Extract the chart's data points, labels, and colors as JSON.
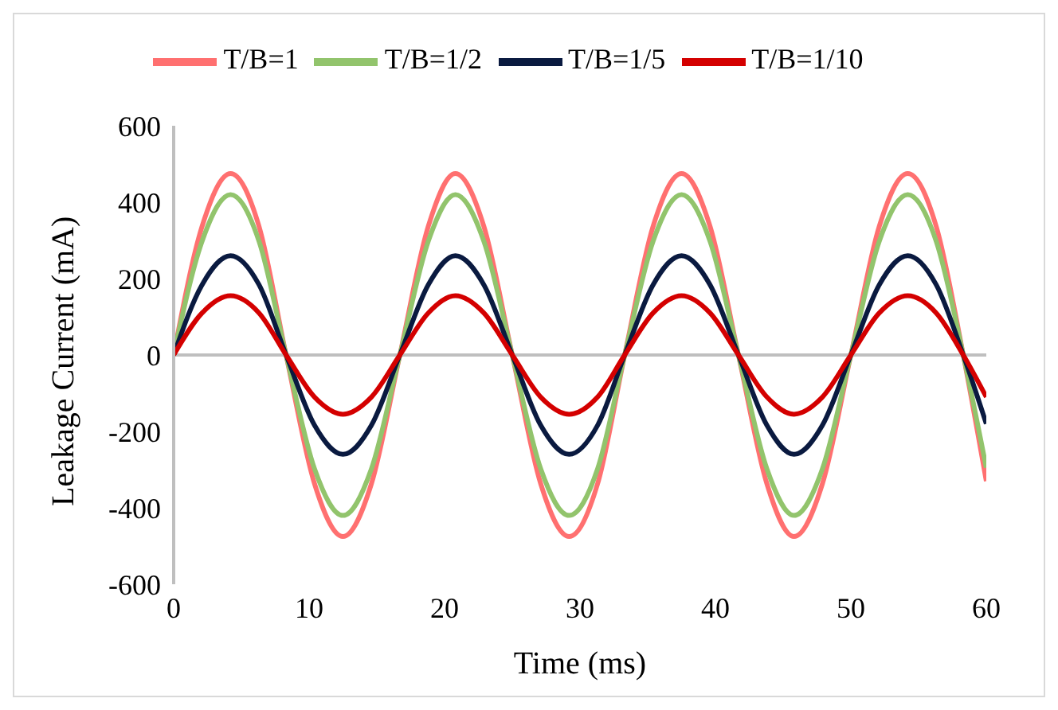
{
  "chart_data": {
    "type": "line",
    "xlabel": "Time (ms)",
    "ylabel": "Leakage Current (mA)",
    "x": [
      0,
      2.1,
      4.2,
      6.3,
      8.3,
      10.4,
      12.5,
      14.6,
      16.7,
      18.8,
      20.8,
      22.9,
      25,
      27.1,
      29.2,
      31.3,
      33.3,
      35.4,
      37.5,
      39.6,
      41.7,
      43.8,
      45.8,
      47.9,
      50,
      52.1,
      54.2,
      56.3,
      58.3,
      60
    ],
    "series": [
      {
        "name": "T/B=1",
        "color": "#ff7070",
        "values": [
          0,
          337,
          475,
          337,
          0,
          -337,
          -475,
          -337,
          0,
          337,
          475,
          337,
          0,
          -337,
          -475,
          -337,
          0,
          337,
          475,
          337,
          0,
          -337,
          -475,
          -337,
          0,
          337,
          475,
          337,
          0,
          -330
        ]
      },
      {
        "name": "T/B=1/2",
        "color": "#92c46c",
        "values": [
          0,
          298,
          420,
          298,
          0,
          -298,
          -420,
          -298,
          0,
          298,
          420,
          298,
          0,
          -298,
          -420,
          -298,
          0,
          298,
          420,
          298,
          0,
          -298,
          -420,
          -298,
          0,
          298,
          420,
          298,
          0,
          -295
        ]
      },
      {
        "name": "T/B=1/5",
        "color": "#0a1a40",
        "values": [
          0,
          184,
          260,
          184,
          0,
          -184,
          -260,
          -184,
          0,
          184,
          260,
          184,
          0,
          -184,
          -260,
          -184,
          0,
          184,
          260,
          184,
          0,
          -184,
          -260,
          -184,
          0,
          184,
          260,
          184,
          0,
          -180
        ]
      },
      {
        "name": "T/B=1/10",
        "color": "#d40000",
        "values": [
          0,
          110,
          155,
          110,
          0,
          -110,
          -155,
          -110,
          0,
          110,
          155,
          110,
          0,
          -110,
          -155,
          -110,
          0,
          110,
          155,
          110,
          0,
          -110,
          -155,
          -110,
          0,
          110,
          155,
          110,
          0,
          -110
        ]
      }
    ],
    "xlim": [
      0,
      60
    ],
    "xticks": [
      0,
      10,
      20,
      30,
      40,
      50,
      60
    ],
    "ylim": [
      -600,
      600
    ],
    "yticks": [
      -600,
      -400,
      -200,
      0,
      200,
      400,
      600
    ],
    "legend": "top",
    "marker": "none",
    "line_style": "solid"
  }
}
